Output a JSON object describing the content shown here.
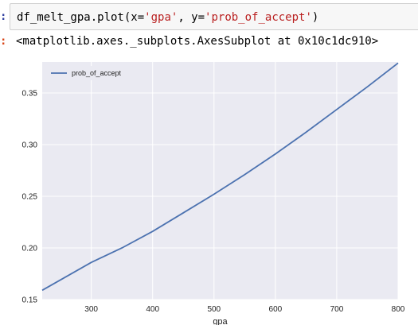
{
  "cell": {
    "in_prompt": ":",
    "code_prefix": "df_melt_gpa.plot(x=",
    "code_arg1": "'gpa'",
    "code_sep": ", y=",
    "code_arg2": "'prob_of_accept'",
    "code_suffix": ")"
  },
  "output": {
    "out_prompt": ":",
    "repr": "<matplotlib.axes._subplots.AxesSubplot at 0x10c1dc910>"
  },
  "colors": {
    "line": "#4c72b0",
    "plot_bg": "#eaeaf2",
    "grid": "#ffffff",
    "code_string": "#ba2121"
  },
  "chart_data": {
    "type": "line",
    "xlabel": "gpa",
    "ylabel": "",
    "xlim": [
      220,
      800
    ],
    "ylim": [
      0.15,
      0.38
    ],
    "xticks": [
      300,
      400,
      500,
      600,
      700,
      800
    ],
    "yticks": [
      0.15,
      0.2,
      0.25,
      0.3,
      0.35
    ],
    "ytick_labels": [
      "0.15",
      "0.20",
      "0.25",
      "0.30",
      "0.35"
    ],
    "legend_position": "top-left",
    "grid": true,
    "series": [
      {
        "name": "prob_of_accept",
        "x": [
          220,
          300,
          350,
          400,
          450,
          500,
          550,
          600,
          650,
          700,
          750,
          800
        ],
        "y": [
          0.159,
          0.186,
          0.2,
          0.216,
          0.234,
          0.252,
          0.271,
          0.291,
          0.312,
          0.334,
          0.356,
          0.379
        ]
      }
    ]
  }
}
